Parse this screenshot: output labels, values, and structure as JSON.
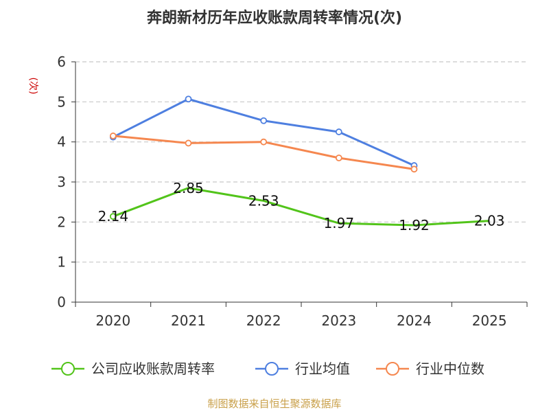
{
  "chart_data": {
    "type": "line",
    "title": "奔朗新材历年应收账款周转率情况(次)",
    "ylabel": "(次)",
    "xlabel": "",
    "categories": [
      "2020",
      "2021",
      "2022",
      "2023",
      "2024",
      "2025"
    ],
    "ylim": [
      0,
      6
    ],
    "yticks": [
      "0",
      "1",
      "2",
      "3",
      "4",
      "5",
      "6"
    ],
    "grid": true,
    "legend_position": "bottom",
    "series": [
      {
        "name": "公司应收账款周转率",
        "color": "#52c41a",
        "values": [
          2.14,
          2.85,
          2.53,
          1.97,
          1.92,
          2.03
        ],
        "labels": [
          "2.14",
          "2.85",
          "2.53",
          "1.97",
          "1.92",
          "2.03"
        ]
      },
      {
        "name": "行业均值",
        "color": "#4e7fe0",
        "values": [
          4.12,
          5.07,
          4.53,
          4.25,
          3.41,
          null
        ]
      },
      {
        "name": "行业中位数",
        "color": "#f5874f",
        "values": [
          4.15,
          3.97,
          4.0,
          3.6,
          3.32,
          null
        ]
      }
    ],
    "source": "制图数据来自恒生聚源数据库"
  }
}
